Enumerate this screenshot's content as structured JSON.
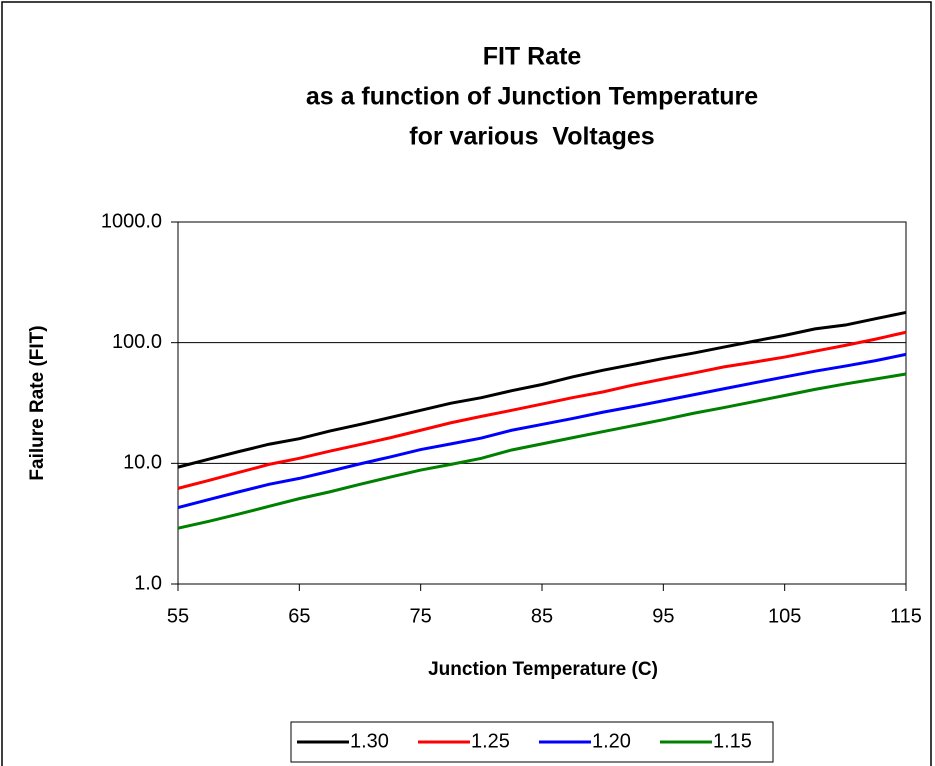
{
  "chart_data": {
    "type": "line",
    "title": [
      "FIT Rate",
      "as a function of Junction Temperature",
      "for various  Voltages"
    ],
    "x_label": "Junction Temperature (C)",
    "y_label": "Failure Rate (FIT)",
    "x": [
      55,
      57.5,
      60,
      62.5,
      65,
      67.5,
      70,
      72.5,
      75,
      77.5,
      80,
      82.5,
      85,
      87.5,
      90,
      92.5,
      95,
      97.5,
      100,
      102.5,
      105,
      107.5,
      110,
      112.5,
      115
    ],
    "series": [
      {
        "name": "1.30",
        "color": "#000000",
        "values": [
          9.3,
          10.8,
          12.5,
          14.4,
          16.0,
          18.5,
          21.0,
          24,
          27.5,
          31.5,
          35,
          40,
          45,
          52,
          59,
          66,
          74,
          82,
          92,
          103,
          115,
          130,
          140,
          158,
          178
        ]
      },
      {
        "name": "1.25",
        "color": "#ff0000",
        "values": [
          6.2,
          7.2,
          8.4,
          9.8,
          11,
          12.6,
          14.3,
          16.3,
          18.8,
          21.7,
          24.5,
          27.5,
          31,
          35,
          39,
          44.5,
          50,
          56,
          63,
          69,
          76,
          85,
          95,
          107,
          122
        ]
      },
      {
        "name": "1.20",
        "color": "#0000ff",
        "values": [
          4.3,
          5.0,
          5.8,
          6.7,
          7.5,
          8.6,
          9.9,
          11.3,
          13,
          14.5,
          16.2,
          18.8,
          21,
          23.5,
          26.5,
          29.5,
          33,
          37,
          41.5,
          46.5,
          52,
          58,
          64,
          71,
          80
        ]
      },
      {
        "name": "1.15",
        "color": "#008000",
        "values": [
          2.9,
          3.3,
          3.8,
          4.4,
          5.1,
          5.8,
          6.7,
          7.7,
          8.8,
          9.8,
          11,
          12.9,
          14.5,
          16.3,
          18.3,
          20.5,
          23,
          26,
          29,
          32.5,
          36.5,
          41,
          45.5,
          50,
          55
        ]
      }
    ],
    "xlim": [
      55,
      115
    ],
    "xticks": [
      55,
      65,
      75,
      85,
      95,
      105,
      115
    ],
    "ylim": [
      1,
      1000
    ],
    "yticks": [
      {
        "value": 1,
        "label": "1.0"
      },
      {
        "value": 10,
        "label": "10.0"
      },
      {
        "value": 100,
        "label": "100.0"
      },
      {
        "value": 1000,
        "label": "1000.0"
      }
    ],
    "log_y": true,
    "grid": true,
    "legend": "bottom"
  }
}
